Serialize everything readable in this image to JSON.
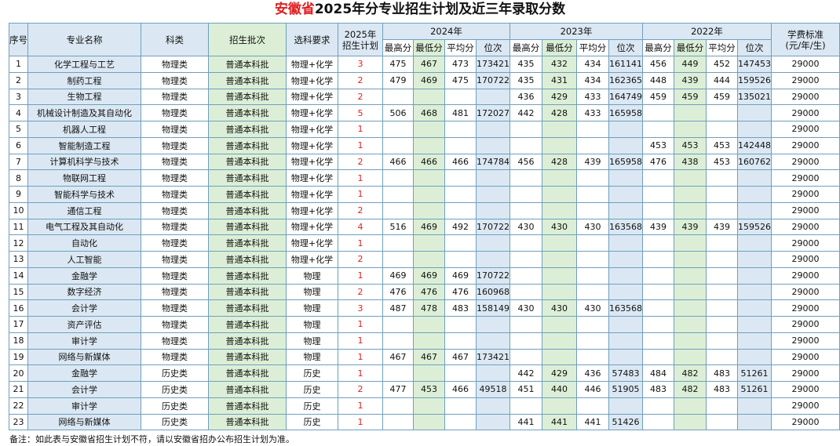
{
  "title": {
    "province": "安徽省",
    "rest": "2025年分专业招生计划及近三年录取分数"
  },
  "headers": {
    "seq": "序号",
    "major": "专业名称",
    "category": "科类",
    "batch": "招生批次",
    "subjects": "选科要求",
    "plan_line1": "2025年",
    "plan_line2": "招生计划",
    "y2024": "2024年",
    "y2023": "2023年",
    "y2022": "2022年",
    "max": "最高分",
    "min": "最低分",
    "avg": "平均分",
    "rank": "位次",
    "fee_line1": "学费标准",
    "fee_line2": "(元/年/生)"
  },
  "rows": [
    [
      "1",
      "化学工程与工艺",
      "物理类",
      "普通本科批",
      "物理+化学",
      "3",
      "475",
      "467",
      "473",
      "173421",
      "435",
      "432",
      "434",
      "161141",
      "456",
      "449",
      "452",
      "147453",
      "29000"
    ],
    [
      "2",
      "制药工程",
      "物理类",
      "普通本科批",
      "物理+化学",
      "2",
      "479",
      "469",
      "475",
      "170722",
      "435",
      "431",
      "434",
      "162365",
      "448",
      "439",
      "444",
      "159526",
      "29000"
    ],
    [
      "3",
      "生物工程",
      "物理类",
      "普通本科批",
      "物理+化学",
      "2",
      "",
      "",
      "",
      "",
      "436",
      "429",
      "433",
      "164749",
      "459",
      "459",
      "459",
      "135021",
      "29000"
    ],
    [
      "4",
      "机械设计制造及其自动化",
      "物理类",
      "普通本科批",
      "物理+化学",
      "5",
      "506",
      "468",
      "481",
      "172027",
      "442",
      "428",
      "433",
      "165958",
      "",
      "",
      "",
      "",
      "29000"
    ],
    [
      "5",
      "机器人工程",
      "物理类",
      "普通本科批",
      "物理+化学",
      "1",
      "",
      "",
      "",
      "",
      "",
      "",
      "",
      "",
      "",
      "",
      "",
      "",
      "29000"
    ],
    [
      "6",
      "智能制造工程",
      "物理类",
      "普通本科批",
      "物理+化学",
      "1",
      "",
      "",
      "",
      "",
      "",
      "",
      "",
      "",
      "453",
      "453",
      "453",
      "142448",
      "29000"
    ],
    [
      "7",
      "计算机科学与技术",
      "物理类",
      "普通本科批",
      "物理+化学",
      "2",
      "466",
      "466",
      "466",
      "174784",
      "456",
      "428",
      "439",
      "165958",
      "476",
      "438",
      "453",
      "160762",
      "29000"
    ],
    [
      "8",
      "物联网工程",
      "物理类",
      "普通本科批",
      "物理+化学",
      "1",
      "",
      "",
      "",
      "",
      "",
      "",
      "",
      "",
      "",
      "",
      "",
      "",
      "29000"
    ],
    [
      "9",
      "智能科学与技术",
      "物理类",
      "普通本科批",
      "物理+化学",
      "1",
      "",
      "",
      "",
      "",
      "",
      "",
      "",
      "",
      "",
      "",
      "",
      "",
      "29000"
    ],
    [
      "10",
      "通信工程",
      "物理类",
      "普通本科批",
      "物理+化学",
      "2",
      "",
      "",
      "",
      "",
      "",
      "",
      "",
      "",
      "",
      "",
      "",
      "",
      "29000"
    ],
    [
      "11",
      "电气工程及其自动化",
      "物理类",
      "普通本科批",
      "物理+化学",
      "4",
      "516",
      "469",
      "492",
      "170722",
      "430",
      "430",
      "430",
      "163568",
      "439",
      "439",
      "439",
      "159526",
      "29000"
    ],
    [
      "12",
      "自动化",
      "物理类",
      "普通本科批",
      "物理+化学",
      "1",
      "",
      "",
      "",
      "",
      "",
      "",
      "",
      "",
      "",
      "",
      "",
      "",
      "29000"
    ],
    [
      "13",
      "人工智能",
      "物理类",
      "普通本科批",
      "物理+化学",
      "2",
      "",
      "",
      "",
      "",
      "",
      "",
      "",
      "",
      "",
      "",
      "",
      "",
      "29000"
    ],
    [
      "14",
      "金融学",
      "物理类",
      "普通本科批",
      "物理",
      "1",
      "469",
      "469",
      "469",
      "170722",
      "",
      "",
      "",
      "",
      "",
      "",
      "",
      "",
      "29000"
    ],
    [
      "15",
      "数字经济",
      "物理类",
      "普通本科批",
      "物理",
      "2",
      "476",
      "476",
      "476",
      "160968",
      "",
      "",
      "",
      "",
      "",
      "",
      "",
      "",
      "29000"
    ],
    [
      "16",
      "会计学",
      "物理类",
      "普通本科批",
      "物理",
      "3",
      "487",
      "478",
      "483",
      "158149",
      "430",
      "430",
      "430",
      "163568",
      "",
      "",
      "",
      "",
      "29000"
    ],
    [
      "17",
      "资产评估",
      "物理类",
      "普通本科批",
      "物理",
      "1",
      "",
      "",
      "",
      "",
      "",
      "",
      "",
      "",
      "",
      "",
      "",
      "",
      "29000"
    ],
    [
      "18",
      "审计学",
      "物理类",
      "普通本科批",
      "物理",
      "1",
      "",
      "",
      "",
      "",
      "",
      "",
      "",
      "",
      "",
      "",
      "",
      "",
      "29000"
    ],
    [
      "19",
      "网络与新媒体",
      "物理类",
      "普通本科批",
      "物理",
      "1",
      "467",
      "467",
      "467",
      "173421",
      "",
      "",
      "",
      "",
      "",
      "",
      "",
      "",
      "29000"
    ],
    [
      "20",
      "金融学",
      "历史类",
      "普通本科批",
      "历史",
      "1",
      "",
      "",
      "",
      "",
      "442",
      "429",
      "436",
      "57483",
      "484",
      "482",
      "483",
      "51261",
      "29000"
    ],
    [
      "21",
      "会计学",
      "历史类",
      "普通本科批",
      "历史",
      "2",
      "477",
      "453",
      "466",
      "49518",
      "451",
      "440",
      "446",
      "51905",
      "483",
      "482",
      "483",
      "51261",
      "29000"
    ],
    [
      "22",
      "审计学",
      "历史类",
      "普通本科批",
      "历史",
      "1",
      "",
      "",
      "",
      "",
      "",
      "",
      "",
      "",
      "",
      "",
      "",
      "",
      "29000"
    ],
    [
      "23",
      "网络与新媒体",
      "历史类",
      "普通本科批",
      "历史",
      "1",
      "",
      "",
      "",
      "",
      "441",
      "441",
      "441",
      "51426",
      "",
      "",
      "",
      "",
      "29000"
    ]
  ],
  "note": "备注：如此表与安徽省招生计划不符，请以安徽省招办公布招生计划为准。",
  "colors": {
    "title_red": "#e01f1f",
    "header_blue": "#dbe8f3",
    "green": "#dcefd6",
    "border": "#6f9fbd"
  }
}
